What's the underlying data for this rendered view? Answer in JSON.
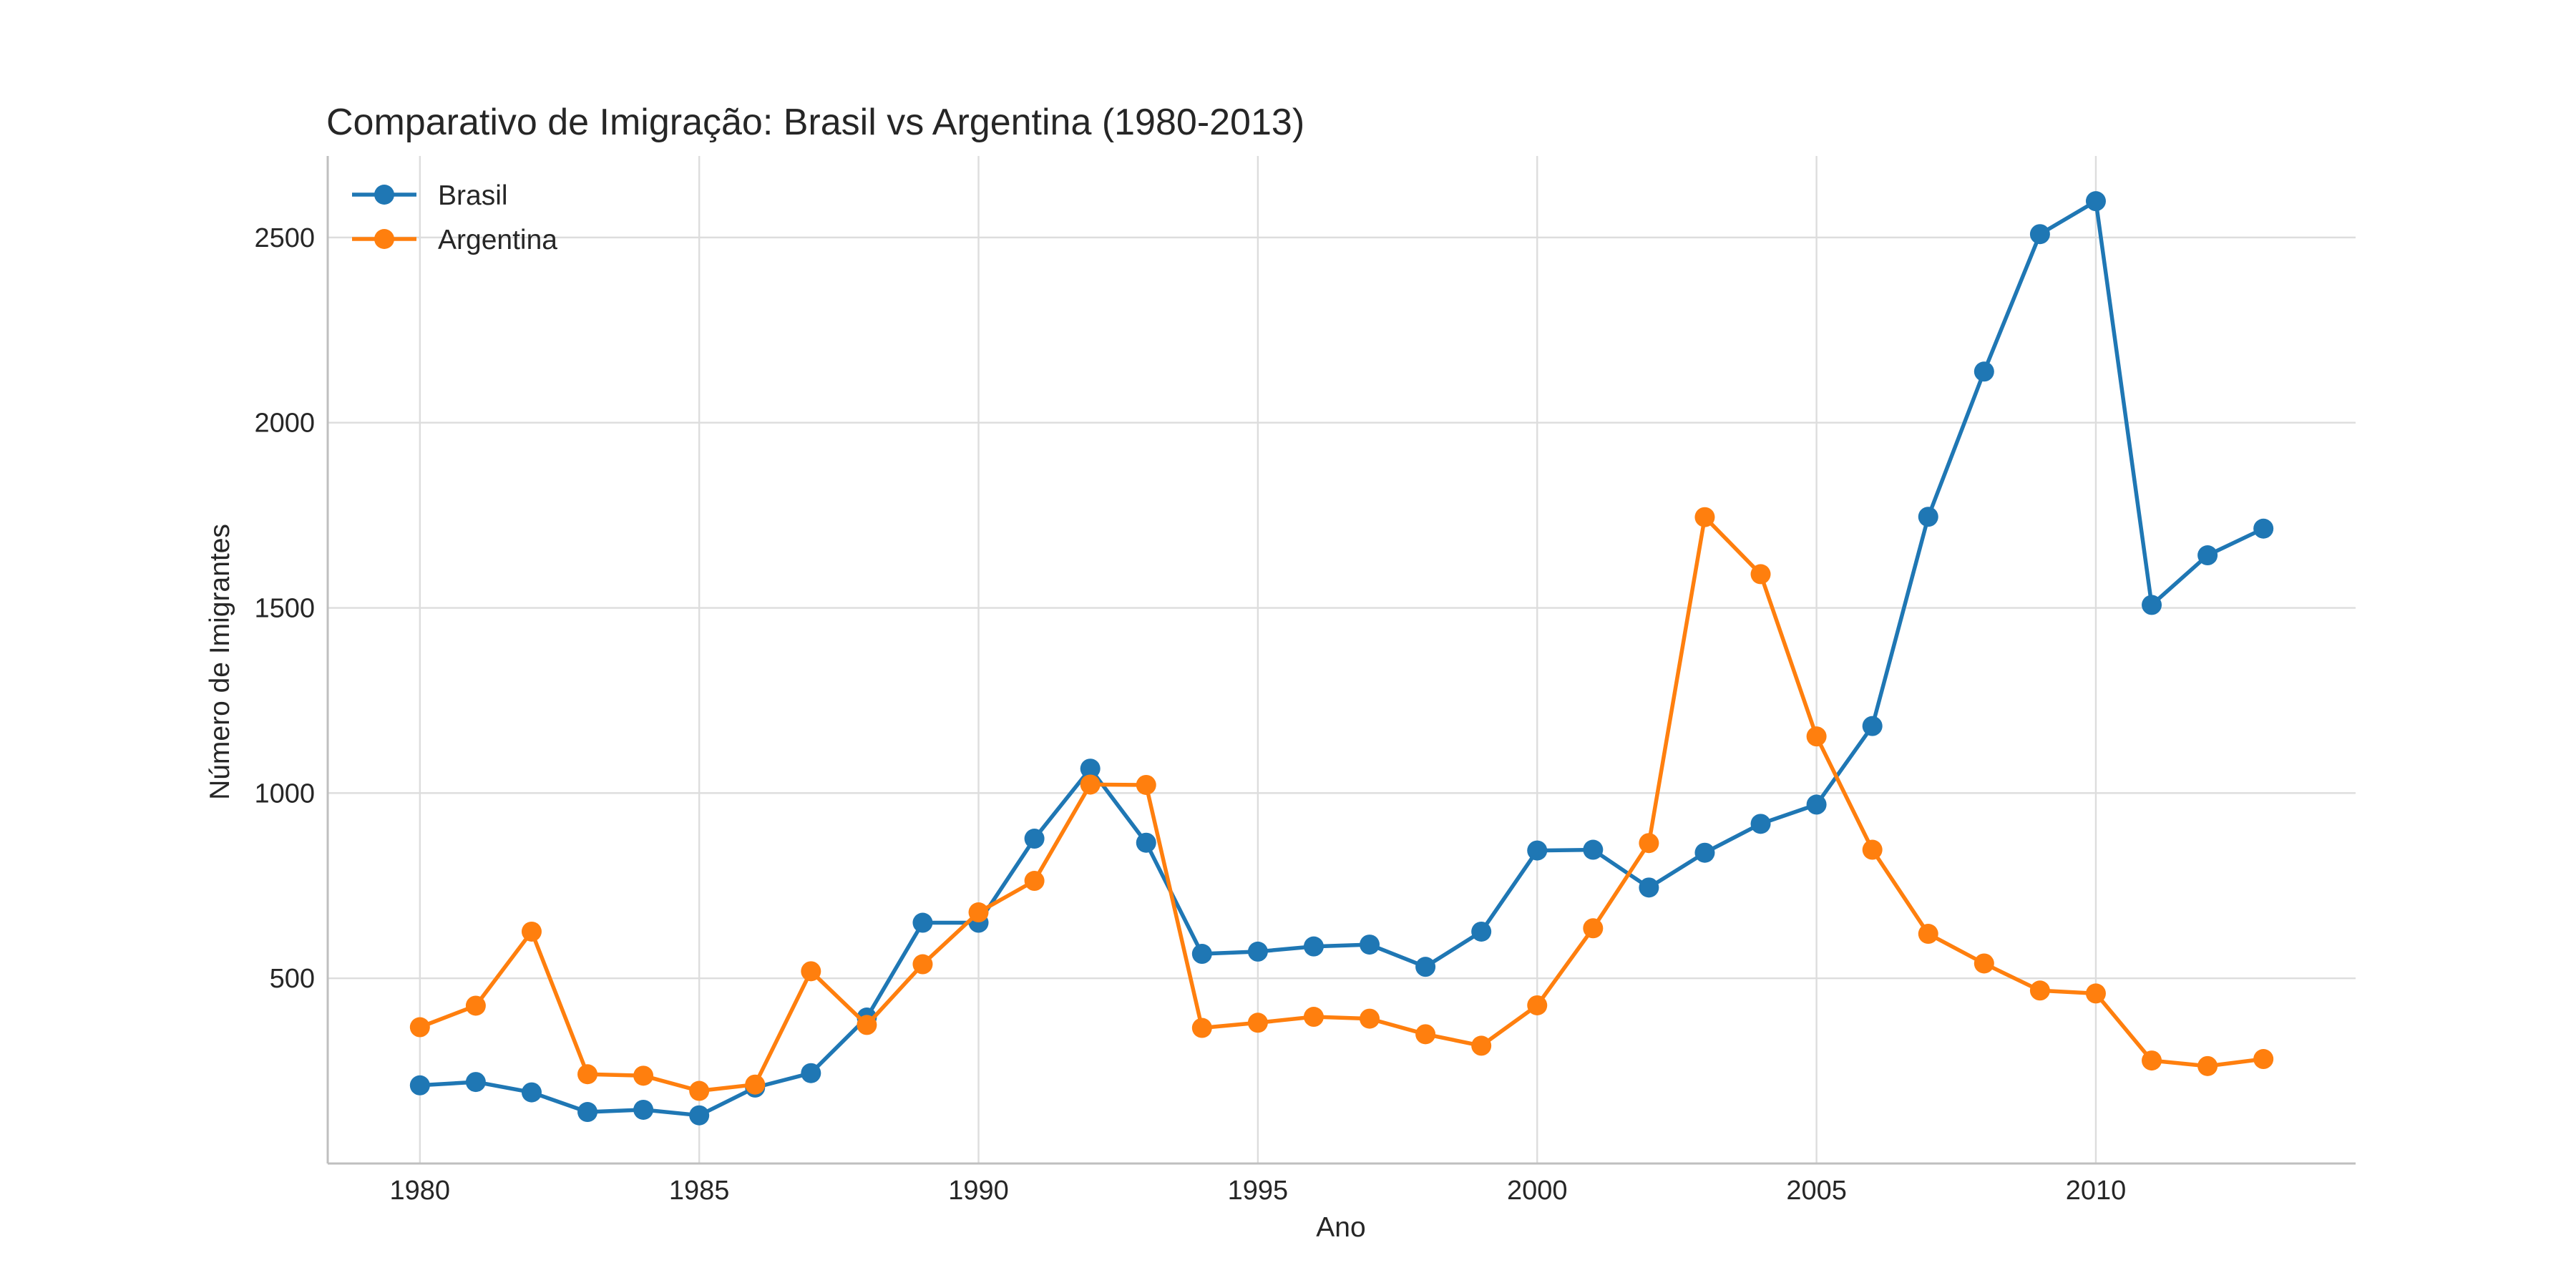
{
  "chart_data": {
    "type": "line",
    "title": "Comparativo de Imigração: Brasil vs Argentina (1980-2013)",
    "xlabel": "Ano",
    "ylabel": "Número de Imigrantes",
    "x": [
      1980,
      1981,
      1982,
      1983,
      1984,
      1985,
      1986,
      1987,
      1988,
      1989,
      1990,
      1991,
      1992,
      1993,
      1994,
      1995,
      1996,
      1997,
      1998,
      1999,
      2000,
      2001,
      2002,
      2003,
      2004,
      2005,
      2006,
      2007,
      2008,
      2009,
      2010,
      2011,
      2012,
      2013
    ],
    "xlim": [
      1978.35,
      2014.65
    ],
    "ylim": [
      0,
      2720
    ],
    "xticks": [
      "1980",
      "1985",
      "1990",
      "1995",
      "2000",
      "2005",
      "2010"
    ],
    "yticks": [
      "500",
      "1000",
      "1500",
      "2000",
      "2500"
    ],
    "grid": true,
    "legend_position": "upper-left",
    "series": [
      {
        "name": "Brasil",
        "color": "#1f77b4",
        "values": [
          211,
          220,
          192,
          139,
          145,
          130,
          205,
          244,
          394,
          650,
          650,
          877,
          1066,
          866,
          566,
          572,
          586,
          591,
          531,
          626,
          845,
          847,
          745,
          839,
          917,
          969,
          1181,
          1746,
          2138,
          2509,
          2598,
          1508,
          1642,
          1714
        ]
      },
      {
        "name": "Argentina",
        "color": "#ff7f0e",
        "values": [
          368,
          426,
          626,
          241,
          237,
          196,
          213,
          519,
          374,
          538,
          678,
          763,
          1023,
          1022,
          366,
          380,
          396,
          391,
          349,
          318,
          427,
          635,
          865,
          1745,
          1591,
          1153,
          847,
          620,
          540,
          467,
          459,
          278,
          263,
          282
        ]
      }
    ]
  }
}
